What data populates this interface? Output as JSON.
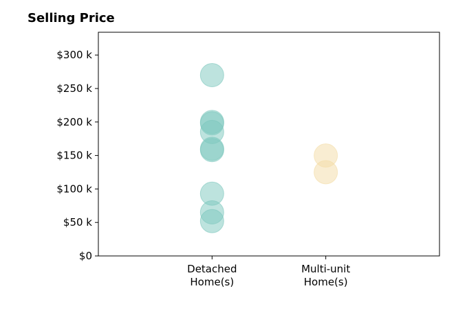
{
  "chart_data": {
    "type": "scatter",
    "title": "Selling Price",
    "xlabel": "",
    "ylabel": "",
    "categories": [
      "Detached\nHome(s)",
      "Multi-unit\nHome(s)"
    ],
    "xlim": [
      0,
      3
    ],
    "ylim": [
      0,
      300000
    ],
    "yticks": [
      0,
      50000,
      100000,
      150000,
      200000,
      250000,
      300000
    ],
    "ytick_labels": [
      "$0",
      "$50 k",
      "$100 k",
      "$150 k",
      "$200 k",
      "$250 k",
      "$300 k"
    ],
    "grid": false,
    "series": [
      {
        "category_index": 0,
        "color": "#7cc7bd",
        "values": [
          270000,
          200000,
          198000,
          185000,
          160000,
          158000,
          93000,
          65000,
          52000
        ]
      },
      {
        "category_index": 1,
        "color": "#f3dca5",
        "values": [
          150000,
          125000
        ]
      }
    ]
  }
}
